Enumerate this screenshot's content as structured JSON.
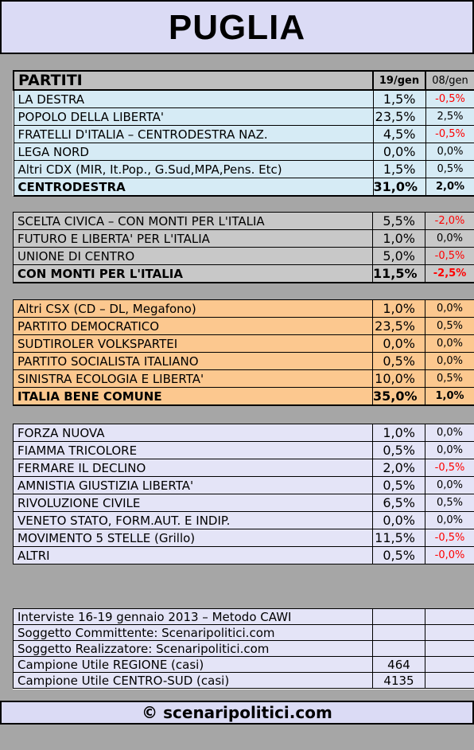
{
  "title": "PUGLIA",
  "header": {
    "label": "PARTITI",
    "col1": "19/gen",
    "col2": "08/gen"
  },
  "groups": [
    {
      "key": "blue",
      "rows": [
        {
          "name": "LA DESTRA",
          "v1": "1,5%",
          "v2": "-0,5%"
        },
        {
          "name": "POPOLO DELLA LIBERTA'",
          "v1": "23,5%",
          "v2": "2,5%"
        },
        {
          "name": "FRATELLI D'ITALIA – CENTRODESTRA NAZ.",
          "v1": "4,5%",
          "v2": "-0,5%"
        },
        {
          "name": "LEGA NORD",
          "v1": "0,0%",
          "v2": "0,0%"
        },
        {
          "name": "Altri CDX (MIR, It.Pop., G.Sud,MPA,Pens. Etc)",
          "v1": "1,5%",
          "v2": "0,5%"
        }
      ],
      "total": {
        "name": "CENTRODESTRA",
        "v1": "31,0%",
        "v2": "2,0%"
      }
    },
    {
      "key": "silver",
      "rows": [
        {
          "name": "SCELTA CIVICA – CON MONTI PER L'ITALIA",
          "v1": "5,5%",
          "v2": "-2,0%"
        },
        {
          "name": "FUTURO E LIBERTA' PER L'ITALIA",
          "v1": "1,0%",
          "v2": "0,0%"
        },
        {
          "name": "UNIONE DI CENTRO",
          "v1": "5,0%",
          "v2": "-0,5%"
        }
      ],
      "total": {
        "name": "CON MONTI PER L'ITALIA",
        "v1": "11,5%",
        "v2": "-2,5%"
      }
    },
    {
      "key": "orange",
      "rows": [
        {
          "name": "Altri CSX (CD – DL, Megafono)",
          "v1": "1,0%",
          "v2": "0,0%"
        },
        {
          "name": "PARTITO DEMOCRATICO",
          "v1": "23,5%",
          "v2": "0,5%"
        },
        {
          "name": "SUDTIROLER VOLKSPARTEI",
          "v1": "0,0%",
          "v2": "0,0%"
        },
        {
          "name": "PARTITO SOCIALISTA ITALIANO",
          "v1": "0,5%",
          "v2": "0,0%"
        },
        {
          "name": "SINISTRA ECOLOGIA E LIBERTA'",
          "v1": "10,0%",
          "v2": "0,5%"
        }
      ],
      "total": {
        "name": "ITALIA BENE COMUNE",
        "v1": "35,0%",
        "v2": "1,0%"
      }
    },
    {
      "key": "lav",
      "rows": [
        {
          "name": "FORZA NUOVA",
          "v1": "1,0%",
          "v2": "0,0%"
        },
        {
          "name": "FIAMMA TRICOLORE",
          "v1": "0,5%",
          "v2": "0,0%"
        },
        {
          "name": "FERMARE IL DECLINO",
          "v1": "2,0%",
          "v2": "-0,5%"
        },
        {
          "name": "AMNISTIA GIUSTIZIA LIBERTA'",
          "v1": "0,5%",
          "v2": "0,0%"
        },
        {
          "name": "RIVOLUZIONE CIVILE",
          "v1": "6,5%",
          "v2": "0,5%"
        },
        {
          "name": "VENETO STATO, FORM.AUT. E INDIP.",
          "v1": "0,0%",
          "v2": "0,0%"
        },
        {
          "name": "MOVIMENTO 5 STELLE (Grillo)",
          "v1": "11,5%",
          "v2": "-0,5%"
        },
        {
          "name": "ALTRI",
          "v1": "0,5%",
          "v2": "-0,0%"
        }
      ]
    }
  ],
  "info": [
    {
      "name": "Interviste 16-19 gennaio 2013 – Metodo CAWI",
      "v1": ""
    },
    {
      "name": "Soggetto Committente: Scenaripolitici.com",
      "v1": ""
    },
    {
      "name": "Soggetto Realizzatore: Scenaripolitici.com",
      "v1": ""
    },
    {
      "name": "Campione Utile REGIONE (casi)",
      "v1": "464"
    },
    {
      "name": "Campione Utile CENTRO-SUD (casi)",
      "v1": "4135"
    }
  ],
  "footer": "© scenaripolitici.com",
  "colors": {
    "negative": "#ff0000",
    "blue_block": "#d6ebf5",
    "silver_block": "#c8c8c8",
    "orange_block": "#fcc88f",
    "lavender_block": "#e4e4f7"
  }
}
